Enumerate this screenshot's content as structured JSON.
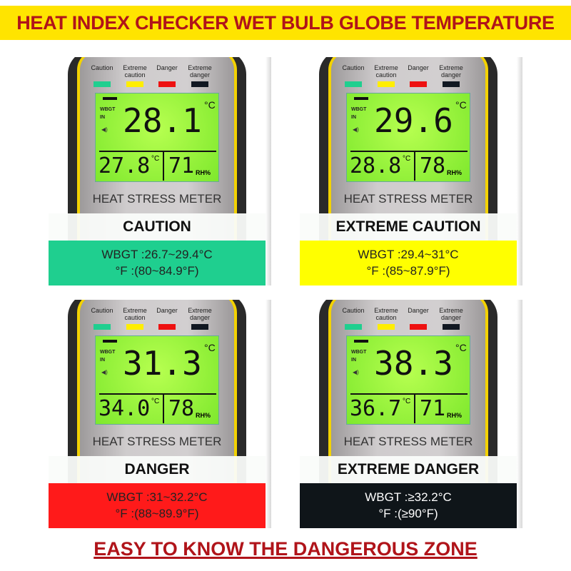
{
  "title": "HEAT INDEX CHECKER WET BULB GLOBE TEMPERATURE",
  "footer": "EASY TO KNOW THE DANGEROUS ZONE",
  "legend": [
    {
      "label": "Caution",
      "color": "#1fcf8f"
    },
    {
      "label": "Extreme caution",
      "color": "#ffee00"
    },
    {
      "label": "Danger",
      "color": "#ee1111"
    },
    {
      "label": "Extreme danger",
      "color": "#111822"
    }
  ],
  "lcd_labels": {
    "wbgt": "WBGT",
    "in": "IN",
    "celsius": "°C",
    "rh": "RH%",
    "speaker": "speaker-icon"
  },
  "device_label": "HEAT STRESS METER",
  "panels": [
    {
      "level": "CAUTION",
      "wbgt_reading": "28.1",
      "temp": "27.8",
      "humidity": "71",
      "range_c": "WBGT :26.7~29.4°C",
      "range_f": "°F :(80~84.9°F)",
      "band_color": "#1fcf8f",
      "text_color": "#222222"
    },
    {
      "level": "EXTREME CAUTION",
      "wbgt_reading": "29.6",
      "temp": "28.8",
      "humidity": "78",
      "range_c": "WBGT :29.4~31°C",
      "range_f": "°F :(85~87.9°F)",
      "band_color": "#ffff00",
      "text_color": "#222222"
    },
    {
      "level": "DANGER",
      "wbgt_reading": "31.3",
      "temp": "34.0",
      "humidity": "78",
      "range_c": "WBGT :31~32.2°C",
      "range_f": "°F :(88~89.9°F)",
      "band_color": "#ff1a1a",
      "text_color": "#222222"
    },
    {
      "level": "EXTREME DANGER",
      "wbgt_reading": "38.3",
      "temp": "36.7",
      "humidity": "71",
      "range_c": "WBGT :≥32.2°C",
      "range_f": "°F :(≥90°F)",
      "band_color": "#0f1519",
      "text_color": "#ffffff"
    }
  ]
}
